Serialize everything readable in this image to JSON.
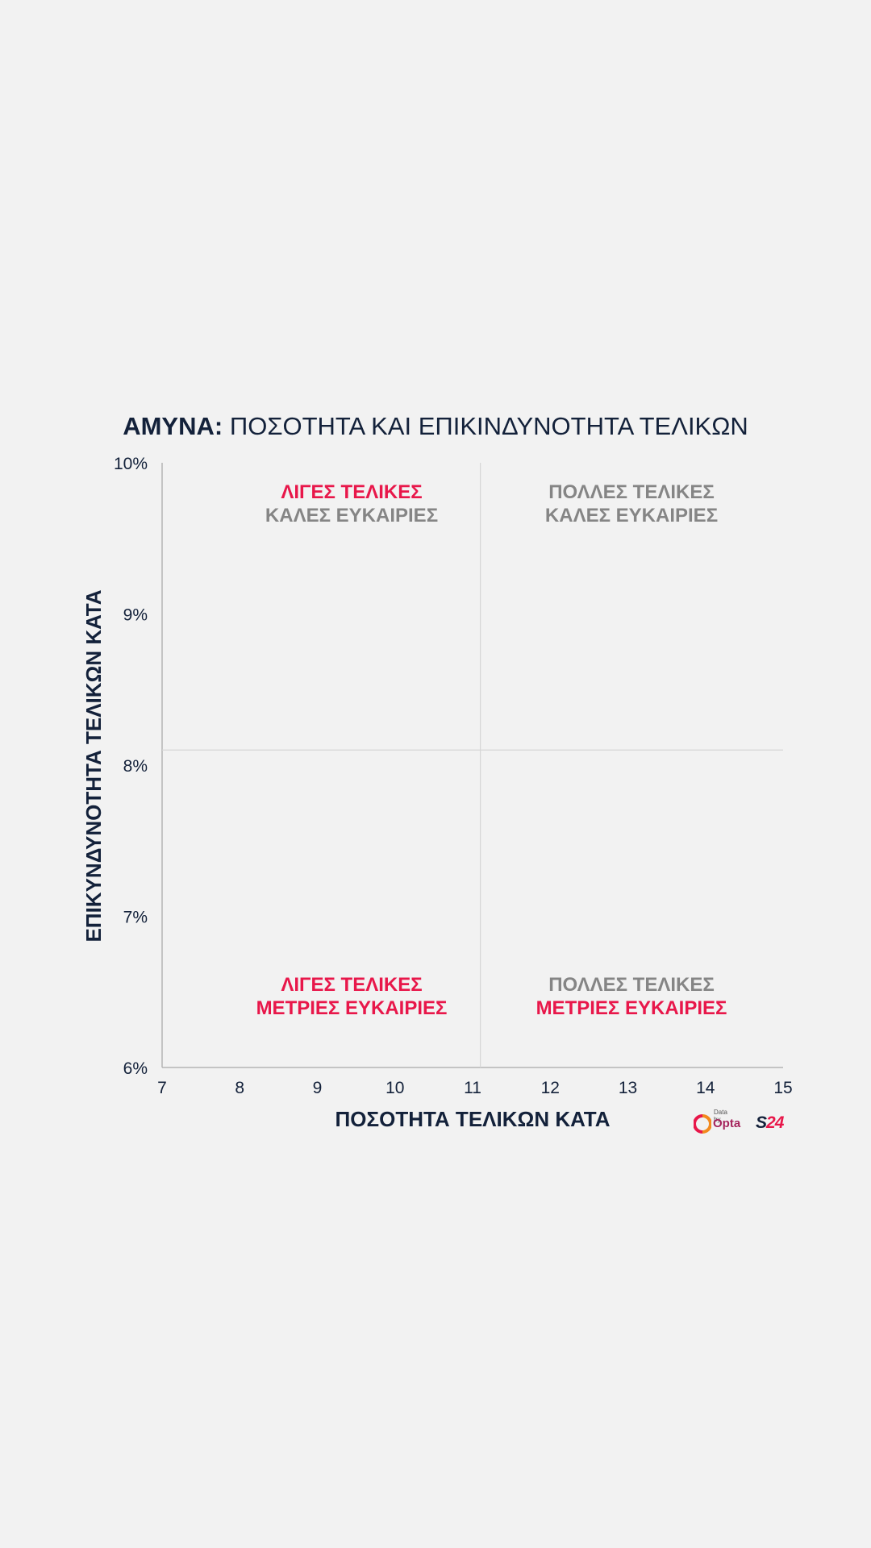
{
  "title": {
    "bold": "ΑΜΥΝΑ:",
    "rest": " ΠΟΣΟΤΗΤΑ ΚΑΙ ΕΠΙΚΙΝΔΥΝΟΤΗΤΑ ΤΕΛΙΚΩΝ"
  },
  "quadrants": {
    "top_left": {
      "line1": "ΛΙΓΕΣ ΤΕΛΙΚΕΣ",
      "line2": "ΚΑΛΕΣ ΕΥΚΑΙΡΙΕΣ"
    },
    "top_right": {
      "line1": "ΠΟΛΛΕΣ ΤΕΛΙΚΕΣ",
      "line2": "ΚΑΛΕΣ ΕΥΚΑΙΡΙΕΣ"
    },
    "bottom_left": {
      "line1": "ΛΙΓΕΣ ΤΕΛΙΚΕΣ",
      "line2": "ΜΕΤΡΙΕΣ ΕΥΚΑΙΡΙΕΣ"
    },
    "bottom_right": {
      "line1": "ΠΟΛΛΕΣ ΤΕΛΙΚΕΣ",
      "line2": "ΜΕΤΡΙΕΣ ΕΥΚΑΙΡΙΕΣ"
    }
  },
  "logos": {
    "opta_by": "Data by",
    "opta": "Opta",
    "s24_s": "S",
    "s24_n": "24"
  },
  "colors": {
    "navy": "#13213a",
    "red": "#e8174a",
    "grey": "#858585",
    "background": "#f2f2f2"
  },
  "chart_data": {
    "type": "scatter",
    "title": "ΑΜΥΝΑ: ΠΟΣΟΤΗΤΑ ΚΑΙ ΕΠΙΚΙΝΔΥΝΟΤΗΤΑ ΤΕΛΙΚΩΝ",
    "xlabel": "ΠΟΣΟΤΗΤΑ ΤΕΛΙΚΩΝ ΚΑΤΑ",
    "ylabel": "ΕΠΙΚΥΝΔΥΝΟΤΗΤΑ ΤΕΛΙΚΩΝ ΚΑΤΑ",
    "xlim": [
      7,
      15
    ],
    "ylim": [
      6,
      10
    ],
    "x_ticks": [
      7,
      8,
      9,
      10,
      11,
      12,
      13,
      14,
      15
    ],
    "x_tick_labels": [
      "7",
      "8",
      "9",
      "10",
      "11",
      "12",
      "13",
      "14",
      "15"
    ],
    "y_ticks": [
      6,
      7,
      8,
      9,
      10
    ],
    "y_tick_labels": [
      "6%",
      "7%",
      "8%",
      "9%",
      "10%"
    ],
    "reference_lines": {
      "x": 11.1,
      "y": 8.1
    },
    "points": [],
    "grid": false
  }
}
